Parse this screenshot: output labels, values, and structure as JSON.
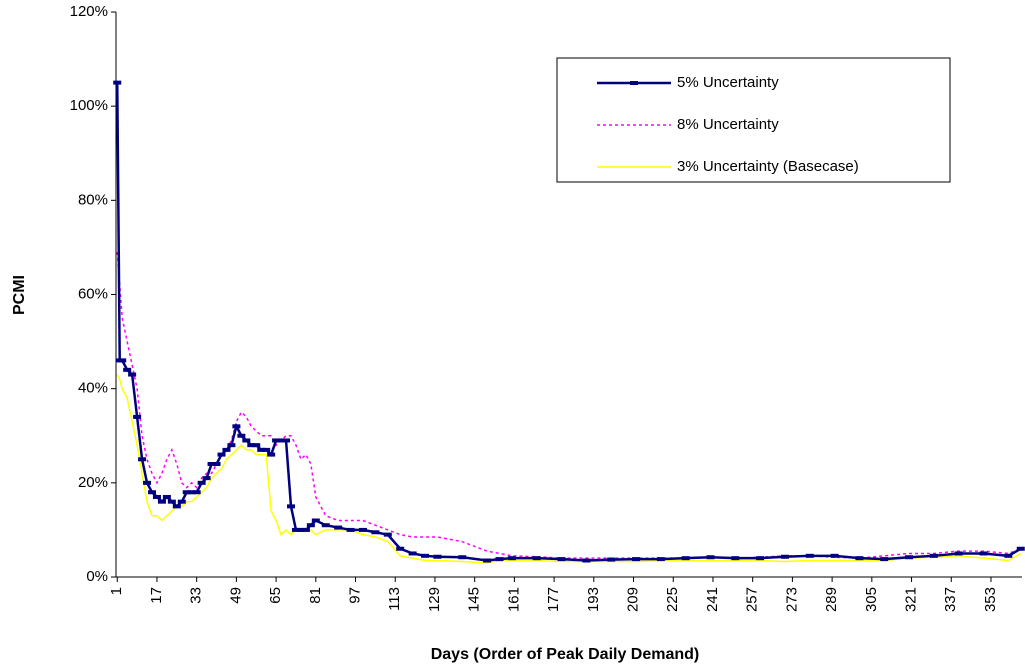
{
  "chart_data": {
    "type": "line",
    "x_label": "Days (Order of Peak Daily Demand)",
    "y_label": "PCMI",
    "x": [
      1,
      2,
      3,
      5,
      7,
      9,
      11,
      13,
      15,
      17,
      19,
      21,
      23,
      25,
      27,
      29,
      31,
      33,
      35,
      37,
      39,
      41,
      43,
      45,
      47,
      49,
      51,
      53,
      55,
      57,
      59,
      61,
      63,
      65,
      67,
      69,
      71,
      73,
      75,
      77,
      79,
      81,
      85,
      90,
      95,
      100,
      105,
      110,
      115,
      120,
      125,
      130,
      140,
      150,
      155,
      160,
      170,
      180,
      190,
      200,
      210,
      220,
      230,
      240,
      250,
      260,
      270,
      280,
      290,
      300,
      310,
      320,
      330,
      340,
      350,
      360,
      365
    ],
    "series": [
      {
        "name": "5% Uncertainty",
        "color": "#000080",
        "linestyle": "solid",
        "marker": "dash",
        "values": [
          105,
          46,
          46,
          44,
          43,
          34,
          25,
          20,
          18,
          17,
          16,
          17,
          16,
          15,
          16,
          18,
          18,
          18,
          20,
          21,
          24,
          24,
          26,
          27,
          28,
          32,
          30,
          29,
          28,
          28,
          27,
          27,
          26,
          29,
          29,
          29,
          15,
          10,
          10,
          10,
          11,
          12,
          11,
          10.5,
          10,
          10,
          9.5,
          9,
          6,
          5,
          4.5,
          4.3,
          4.2,
          3.5,
          3.8,
          4,
          4,
          3.8,
          3.5,
          3.7,
          3.8,
          3.8,
          4,
          4.2,
          4,
          4,
          4.3,
          4.5,
          4.5,
          4,
          3.8,
          4.2,
          4.5,
          5,
          5,
          4.5,
          6
        ]
      },
      {
        "name": "8% Uncertainty",
        "color": "#ff00ff",
        "linestyle": "dashed",
        "values": [
          69,
          62,
          55,
          50,
          45,
          40,
          30,
          25,
          22,
          20,
          22,
          25,
          27,
          24,
          20,
          19,
          20,
          19,
          21,
          22,
          22,
          24,
          26,
          27,
          29,
          33,
          35,
          34,
          32,
          31,
          30,
          30,
          30,
          28,
          29,
          30,
          30,
          28,
          25,
          26,
          24,
          17,
          13,
          12,
          12,
          12,
          11,
          10,
          9,
          8.5,
          8.5,
          8.5,
          7.5,
          5.5,
          5,
          4.5,
          4.3,
          4,
          4,
          4,
          4,
          4,
          4,
          4.2,
          4,
          4.2,
          4.5,
          4.5,
          4.2,
          4,
          4.5,
          5,
          5,
          5.5,
          5.5,
          5,
          6
        ]
      },
      {
        "name": "3% Uncertainty (Basecase)",
        "color": "#ffff00",
        "linestyle": "solid",
        "values": [
          43,
          42,
          40,
          38,
          33,
          28,
          22,
          16,
          13,
          13,
          12,
          13,
          14,
          15,
          15,
          16,
          16,
          17,
          18,
          19,
          21,
          22,
          23,
          25,
          26,
          27,
          28,
          27,
          27,
          26,
          26,
          26,
          14,
          12,
          9,
          10,
          9,
          10,
          10,
          10,
          10,
          9,
          10,
          10,
          10,
          9,
          8.5,
          7.5,
          4.5,
          4,
          3.5,
          3.5,
          3.3,
          3,
          3.5,
          3.5,
          3.5,
          3.3,
          3.3,
          3.3,
          3.3,
          3.5,
          3.5,
          3.5,
          3.5,
          3.5,
          3.3,
          3.5,
          3.5,
          3.5,
          3.5,
          4,
          4.2,
          4.5,
          4,
          3.5,
          5
        ]
      }
    ],
    "xlim": [
      0.5,
      365.5
    ],
    "xticks": [
      1,
      17,
      33,
      49,
      65,
      81,
      97,
      113,
      129,
      145,
      161,
      177,
      193,
      209,
      225,
      241,
      257,
      273,
      289,
      305,
      321,
      337,
      353
    ],
    "ylim": [
      0,
      120
    ],
    "yticks": [
      {
        "value": 0,
        "label": "0%"
      },
      {
        "value": 20,
        "label": "20%"
      },
      {
        "value": 40,
        "label": "40%"
      },
      {
        "value": 60,
        "label": "60%"
      },
      {
        "value": 80,
        "label": "80%"
      },
      {
        "value": 100,
        "label": "100%"
      },
      {
        "value": 120,
        "label": "120%"
      }
    ],
    "legend": "upper right",
    "grid": false
  }
}
